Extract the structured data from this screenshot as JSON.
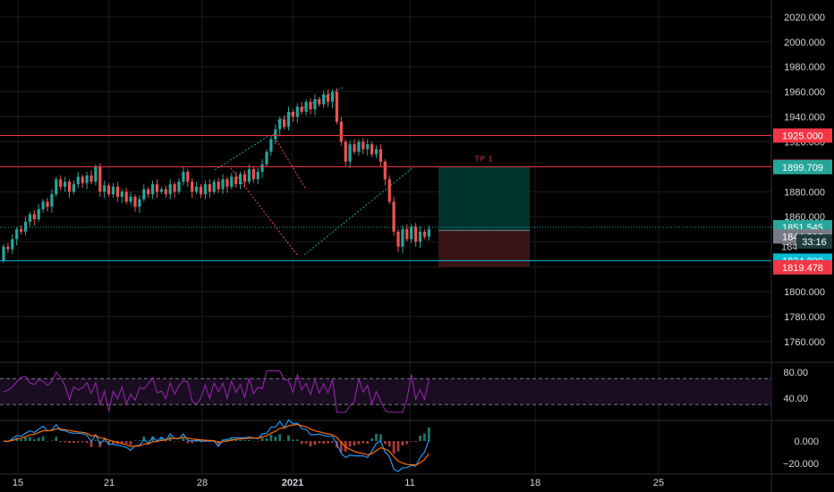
{
  "chart_data": {
    "type": "candlestick",
    "main_pane": {
      "ylim": [
        1740,
        2030
      ],
      "y_ticks": [
        "2020.000",
        "2000.000",
        "1980.000",
        "1960.000",
        "1940.000",
        "1920.000",
        "1880.000",
        "1860.000",
        "1840.000",
        "1800.000",
        "1780.000",
        "1760.000"
      ],
      "horizontal_levels": [
        {
          "value": 1925.0,
          "label": "1925.000",
          "color": "#f23645"
        },
        {
          "value": 1900.0,
          "label": "1900.000",
          "color": "#f23645"
        },
        {
          "value": 1824.8,
          "label": "1824.800",
          "color": "#00bcd4"
        }
      ],
      "price_tags": [
        {
          "value": 1899.709,
          "label": "1899.709",
          "color": "#26a69a"
        },
        {
          "value": 1851.545,
          "label": "1851.545",
          "color": "#26a69a"
        },
        {
          "value": 1844.216,
          "label": "1844.216",
          "color": "#787b86"
        },
        {
          "value": 1819.478,
          "label": "1819.478",
          "color": "#f23645"
        }
      ],
      "countdown": "33:16",
      "partial_tick": "184",
      "position_tool": {
        "label": "TP 1",
        "entry": 1849,
        "target": 1900,
        "stop": 1819.5,
        "target_color": "#00332e",
        "stop_color": "#3a1414"
      },
      "candles": [
        [
          1,
          1825,
          1836
        ],
        [
          2,
          1836,
          1834
        ],
        [
          3,
          1834,
          1842
        ],
        [
          4,
          1842,
          1850
        ],
        [
          5,
          1850,
          1848
        ],
        [
          6,
          1848,
          1856
        ],
        [
          7,
          1856,
          1862
        ],
        [
          8,
          1862,
          1858
        ],
        [
          9,
          1858,
          1866
        ],
        [
          10,
          1866,
          1872
        ],
        [
          11,
          1872,
          1868
        ],
        [
          12,
          1868,
          1878
        ],
        [
          13,
          1878,
          1890
        ],
        [
          14,
          1890,
          1884
        ],
        [
          15,
          1884,
          1888
        ],
        [
          16,
          1888,
          1880
        ],
        [
          17,
          1880,
          1886
        ],
        [
          18,
          1886,
          1892
        ],
        [
          19,
          1892,
          1887
        ],
        [
          20,
          1887,
          1893
        ],
        [
          21,
          1893,
          1888
        ],
        [
          22,
          1888,
          1900
        ],
        [
          23,
          1900,
          1880
        ],
        [
          24,
          1880,
          1885
        ],
        [
          25,
          1885,
          1878
        ],
        [
          26,
          1878,
          1884
        ],
        [
          27,
          1884,
          1876
        ],
        [
          28,
          1876,
          1880
        ],
        [
          29,
          1880,
          1872
        ],
        [
          30,
          1872,
          1876
        ],
        [
          31,
          1876,
          1868
        ],
        [
          32,
          1868,
          1874
        ],
        [
          33,
          1874,
          1882
        ],
        [
          34,
          1882,
          1878
        ],
        [
          35,
          1878,
          1886
        ],
        [
          36,
          1886,
          1880
        ],
        [
          37,
          1880,
          1882
        ],
        [
          38,
          1882,
          1878
        ],
        [
          39,
          1878,
          1886
        ],
        [
          40,
          1886,
          1880
        ],
        [
          41,
          1880,
          1888
        ],
        [
          42,
          1888,
          1896
        ],
        [
          43,
          1896,
          1888
        ],
        [
          44,
          1888,
          1880
        ],
        [
          45,
          1880,
          1884
        ],
        [
          46,
          1884,
          1878
        ],
        [
          47,
          1878,
          1886
        ],
        [
          48,
          1886,
          1880
        ],
        [
          49,
          1880,
          1888
        ],
        [
          50,
          1888,
          1882
        ],
        [
          51,
          1882,
          1890
        ],
        [
          52,
          1890,
          1884
        ],
        [
          53,
          1884,
          1892
        ],
        [
          54,
          1892,
          1886
        ],
        [
          55,
          1886,
          1894
        ],
        [
          56,
          1894,
          1888
        ],
        [
          57,
          1888,
          1898
        ],
        [
          58,
          1898,
          1890
        ],
        [
          59,
          1890,
          1896
        ],
        [
          60,
          1896,
          1902
        ],
        [
          61,
          1902,
          1912
        ],
        [
          62,
          1912,
          1922
        ],
        [
          63,
          1922,
          1930
        ],
        [
          64,
          1930,
          1938
        ],
        [
          65,
          1938,
          1932
        ],
        [
          66,
          1932,
          1944
        ],
        [
          67,
          1944,
          1940
        ],
        [
          68,
          1940,
          1948
        ],
        [
          69,
          1948,
          1944
        ],
        [
          70,
          1944,
          1952
        ],
        [
          71,
          1952,
          1946
        ],
        [
          72,
          1946,
          1954
        ],
        [
          73,
          1954,
          1950
        ],
        [
          74,
          1950,
          1958
        ],
        [
          75,
          1958,
          1952
        ],
        [
          76,
          1952,
          1960
        ],
        [
          77,
          1960,
          1936
        ],
        [
          78,
          1936,
          1920
        ],
        [
          79,
          1920,
          1904
        ],
        [
          80,
          1904,
          1918
        ],
        [
          81,
          1918,
          1912
        ],
        [
          82,
          1912,
          1920
        ],
        [
          83,
          1920,
          1914
        ],
        [
          84,
          1914,
          1918
        ],
        [
          85,
          1918,
          1910
        ],
        [
          86,
          1910,
          1914
        ],
        [
          87,
          1914,
          1904
        ],
        [
          88,
          1904,
          1890
        ],
        [
          89,
          1890,
          1872
        ],
        [
          90,
          1872,
          1848
        ],
        [
          91,
          1848,
          1836
        ],
        [
          92,
          1836,
          1850
        ],
        [
          93,
          1850,
          1842
        ],
        [
          94,
          1842,
          1852
        ],
        [
          95,
          1852,
          1840
        ],
        [
          96,
          1840,
          1848
        ],
        [
          97,
          1848,
          1844
        ],
        [
          98,
          1844,
          1850
        ]
      ],
      "candle_x_start": 4,
      "candle_x_step": 4.9
    },
    "rsi_pane": {
      "y_ticks": [
        "80.00",
        "40.00"
      ],
      "upper": 70,
      "lower": 30,
      "ylim": [
        10,
        90
      ]
    },
    "macd_pane": {
      "y_ticks": [
        "0.000",
        "−20.000"
      ],
      "ylim": [
        -25,
        8
      ]
    },
    "x_ticks": [
      {
        "label": "15",
        "bold": false
      },
      {
        "label": "21",
        "bold": false
      },
      {
        "label": "28",
        "bold": false
      },
      {
        "label": "2021",
        "bold": true
      },
      {
        "label": "11",
        "bold": false
      },
      {
        "label": "18",
        "bold": false
      },
      {
        "label": "25",
        "bold": false
      }
    ],
    "colors": {
      "up": "#26a69a",
      "down": "#ef5350",
      "rsi": "#9c27b0",
      "macd": "#2196f3",
      "signal": "#ff6d00",
      "grid": "#1a1c22"
    }
  }
}
